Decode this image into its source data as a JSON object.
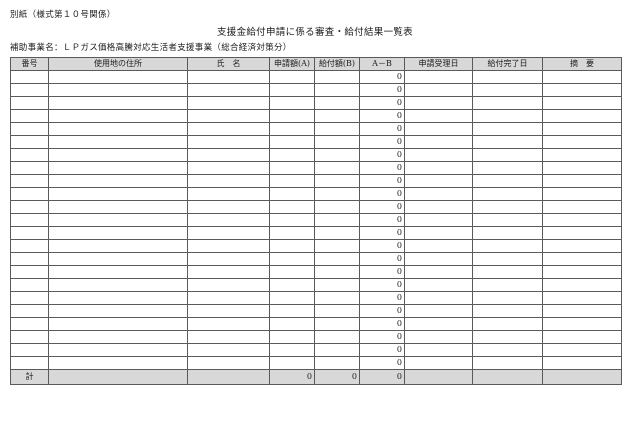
{
  "page": {
    "note": "別紙（様式第１０号関係）",
    "title": "支援金給付申請に係る審査・給付結果一覧表",
    "project_label": "補助事業名：ＬＰガス価格高騰対応生活者支援事業（総合経済対策分）"
  },
  "table": {
    "headers": [
      "番号",
      "使用地の住所",
      "氏　名",
      "申請額(A)",
      "給付額(B)",
      "A－B",
      "申請受理日",
      "給付完了日",
      "摘　要"
    ],
    "rows": [
      [
        "",
        "",
        "",
        "",
        "",
        "0",
        "",
        "",
        ""
      ],
      [
        "",
        "",
        "",
        "",
        "",
        "0",
        "",
        "",
        ""
      ],
      [
        "",
        "",
        "",
        "",
        "",
        "0",
        "",
        "",
        ""
      ],
      [
        "",
        "",
        "",
        "",
        "",
        "0",
        "",
        "",
        ""
      ],
      [
        "",
        "",
        "",
        "",
        "",
        "0",
        "",
        "",
        ""
      ],
      [
        "",
        "",
        "",
        "",
        "",
        "0",
        "",
        "",
        ""
      ],
      [
        "",
        "",
        "",
        "",
        "",
        "0",
        "",
        "",
        ""
      ],
      [
        "",
        "",
        "",
        "",
        "",
        "0",
        "",
        "",
        ""
      ],
      [
        "",
        "",
        "",
        "",
        "",
        "0",
        "",
        "",
        ""
      ],
      [
        "",
        "",
        "",
        "",
        "",
        "0",
        "",
        "",
        ""
      ],
      [
        "",
        "",
        "",
        "",
        "",
        "0",
        "",
        "",
        ""
      ],
      [
        "",
        "",
        "",
        "",
        "",
        "0",
        "",
        "",
        ""
      ],
      [
        "",
        "",
        "",
        "",
        "",
        "0",
        "",
        "",
        ""
      ],
      [
        "",
        "",
        "",
        "",
        "",
        "0",
        "",
        "",
        ""
      ],
      [
        "",
        "",
        "",
        "",
        "",
        "0",
        "",
        "",
        ""
      ],
      [
        "",
        "",
        "",
        "",
        "",
        "0",
        "",
        "",
        ""
      ],
      [
        "",
        "",
        "",
        "",
        "",
        "0",
        "",
        "",
        ""
      ],
      [
        "",
        "",
        "",
        "",
        "",
        "0",
        "",
        "",
        ""
      ],
      [
        "",
        "",
        "",
        "",
        "",
        "0",
        "",
        "",
        ""
      ],
      [
        "",
        "",
        "",
        "",
        "",
        "0",
        "",
        "",
        ""
      ],
      [
        "",
        "",
        "",
        "",
        "",
        "0",
        "",
        "",
        ""
      ],
      [
        "",
        "",
        "",
        "",
        "",
        "0",
        "",
        "",
        ""
      ],
      [
        "",
        "",
        "",
        "",
        "",
        "0",
        "",
        "",
        ""
      ]
    ],
    "total_row": {
      "label": "計",
      "application_amount": "0",
      "payment_amount": "0",
      "a_minus_b": "0"
    },
    "colors": {
      "header_bg": "#d8d8d8",
      "total_bg": "#d8d8d8",
      "border": "#5a5a5a",
      "text": "#1c1c1c"
    }
  }
}
